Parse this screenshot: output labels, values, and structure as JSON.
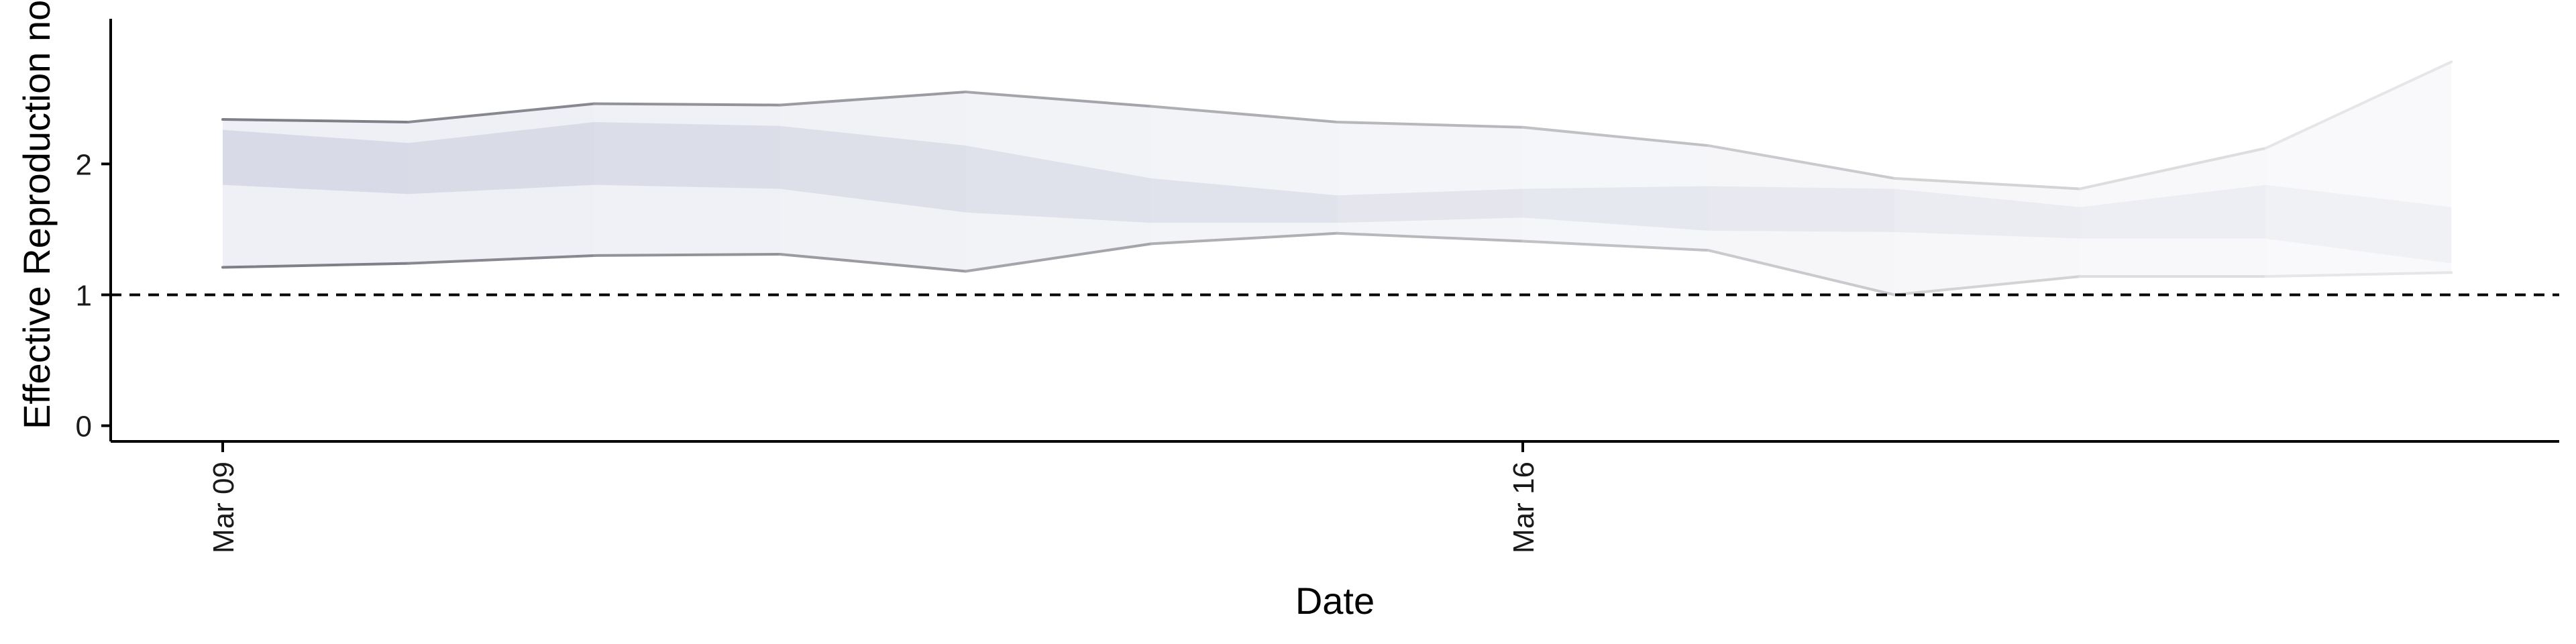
{
  "chart_data": {
    "type": "area",
    "xlabel": "Date",
    "ylabel": "Effective Reproduction no.",
    "x": [
      "Mar 09",
      "Mar 10",
      "Mar 11",
      "Mar 12",
      "Mar 13",
      "Mar 14",
      "Mar 15",
      "Mar 16",
      "Mar 17",
      "Mar 18",
      "Mar 19",
      "Mar 20",
      "Mar 21"
    ],
    "x_ticks": [
      {
        "x": "Mar 09",
        "label": "Mar 09"
      },
      {
        "x": "Mar 16",
        "label": "Mar 16"
      }
    ],
    "ylim": [
      -0.12,
      3.15
    ],
    "y_ticks": [
      0,
      1,
      2
    ],
    "outer_upper": [
      2.34,
      2.32,
      2.46,
      2.45,
      2.55,
      2.44,
      2.32,
      2.28,
      2.14,
      1.89,
      1.81,
      2.12,
      2.78
    ],
    "outer_lower": [
      1.21,
      1.24,
      1.3,
      1.31,
      1.18,
      1.39,
      1.47,
      1.41,
      1.34,
      1.0,
      1.14,
      1.14,
      1.17
    ],
    "inner_upper": [
      2.26,
      2.16,
      2.32,
      2.29,
      2.14,
      1.89,
      1.76,
      1.81,
      1.83,
      1.81,
      1.67,
      1.84,
      1.67
    ],
    "inner_lower": [
      1.84,
      1.77,
      1.84,
      1.81,
      1.63,
      1.55,
      1.55,
      1.59,
      1.49,
      1.48,
      1.43,
      1.43,
      1.24
    ],
    "reference_line": 1,
    "outer_line_start_color": "#7f7f87",
    "outer_line_end_color": "#e6e6e8",
    "band_color": "#c4c8da",
    "reference_line_color": "#000000",
    "grid": false
  }
}
